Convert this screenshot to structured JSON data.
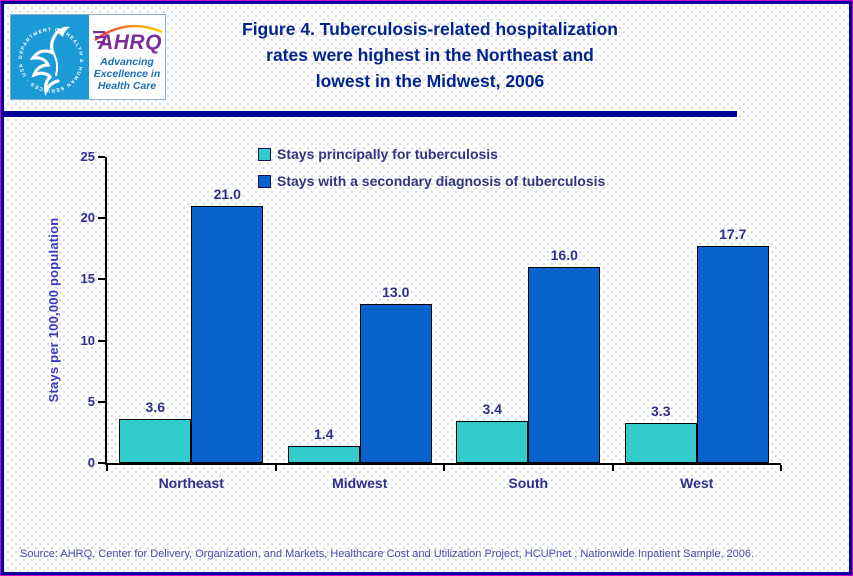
{
  "header": {
    "title_lines": [
      "Figure 4. Tuberculosis-related hospitalization",
      "rates were highest in the Northeast and",
      "lowest in the Midwest, 2006"
    ],
    "logo": {
      "seal_text": "DEPARTMENT OF HEALTH & HUMAN SERVICES · USA",
      "acronym": "AHRQ",
      "tagline_lines": [
        "Advancing",
        "Excellence in",
        "Health Care"
      ]
    }
  },
  "chart_data": {
    "type": "bar",
    "title": "",
    "categories": [
      "Northeast",
      "Midwest",
      "South",
      "West"
    ],
    "series": [
      {
        "name": "Stays principally for tuberculosis",
        "color": "#33CCCC",
        "values": [
          3.6,
          1.4,
          3.4,
          3.3
        ]
      },
      {
        "name": "Stays with a secondary diagnosis of tuberculosis",
        "color": "#0864CC",
        "values": [
          21.0,
          13.0,
          16.0,
          17.7
        ]
      }
    ],
    "xlabel": "",
    "ylabel": "Stays per 100,000 population",
    "ylim": [
      0,
      25
    ],
    "yticks": [
      0,
      5,
      10,
      15,
      20,
      25
    ],
    "grid": false,
    "legend_position": "top-center",
    "value_label_decimals": 1
  },
  "footer": {
    "source": "Source: AHRQ, Center for Delivery, Organization, and Markets, Healthcare Cost and Utilization Project, HCUPnet , Nationwide Inpatient Sample, 2006."
  }
}
